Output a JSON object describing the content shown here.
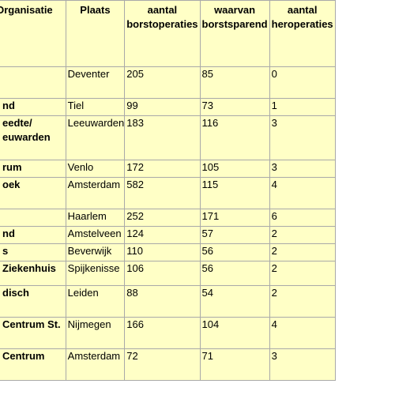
{
  "table": {
    "headers": [
      [
        "Organisatie"
      ],
      [
        "Plaats"
      ],
      [
        "aantal",
        "borstoperaties"
      ],
      [
        "waarvan",
        "borstsparend"
      ],
      [
        "aantal",
        "heroperaties"
      ]
    ],
    "rows": [
      {
        "org": [
          ""
        ],
        "plaats": "Deventer",
        "aantal": "205",
        "sparend": "85",
        "her": "0"
      },
      {
        "org": [
          "nd"
        ],
        "plaats": "Tiel",
        "aantal": "99",
        "sparend": "73",
        "her": "1"
      },
      {
        "org": [
          "eedte/",
          "euwarden"
        ],
        "plaats": "Leeuwarden",
        "aantal": "183",
        "sparend": "116",
        "her": "3"
      },
      {
        "org": [
          "rum"
        ],
        "plaats": "Venlo",
        "aantal": "172",
        "sparend": "105",
        "her": "3"
      },
      {
        "org": [
          "oek"
        ],
        "plaats": "Amsterdam",
        "aantal": "582",
        "sparend": "115",
        "her": "4"
      },
      {
        "org": [
          ""
        ],
        "plaats": "Haarlem",
        "aantal": "252",
        "sparend": "171",
        "her": "6"
      },
      {
        "org": [
          "nd"
        ],
        "plaats": "Amstelveen",
        "aantal": "124",
        "sparend": "57",
        "her": "2"
      },
      {
        "org": [
          "s"
        ],
        "plaats": "Beverwijk",
        "aantal": "110",
        "sparend": "56",
        "her": "2"
      },
      {
        "org": [
          "Ziekenhuis"
        ],
        "plaats": "Spijkenisse",
        "aantal": "106",
        "sparend": "56",
        "her": "2"
      },
      {
        "org": [
          "disch"
        ],
        "plaats": "Leiden",
        "aantal": "88",
        "sparend": "54",
        "her": "2"
      },
      {
        "org": [
          "Centrum St."
        ],
        "plaats": "Nijmegen",
        "aantal": "166",
        "sparend": "104",
        "her": "4"
      },
      {
        "org": [
          "Centrum"
        ],
        "plaats": "Amsterdam",
        "aantal": "72",
        "sparend": "71",
        "her": "3"
      }
    ]
  }
}
